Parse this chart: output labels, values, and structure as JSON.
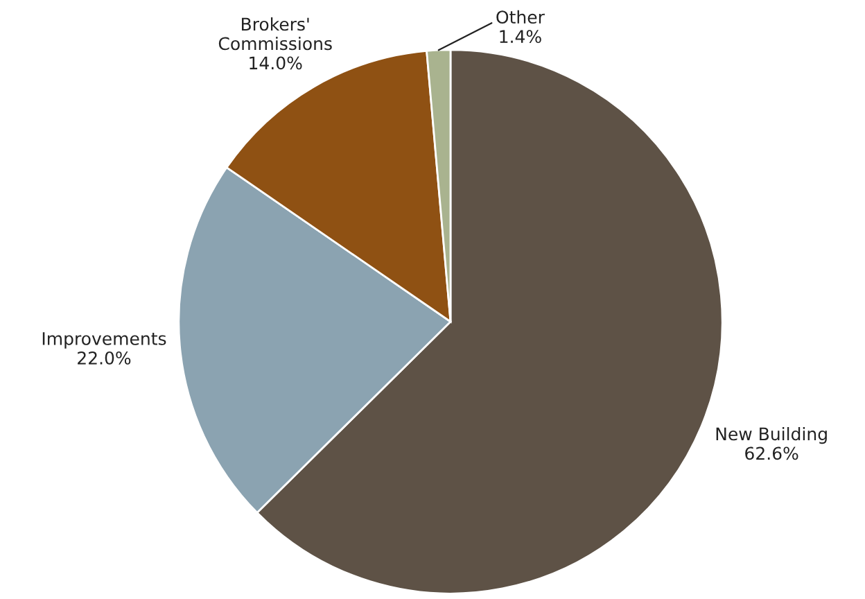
{
  "chart_data": {
    "type": "pie",
    "categories": [
      "New Building",
      "Improvements",
      "Brokers'\nCommissions",
      "Other"
    ],
    "values": [
      62.6,
      22.0,
      14.0,
      1.4
    ],
    "value_labels": [
      "62.6%",
      "22.0%",
      "14.0%",
      "1.4%"
    ],
    "colors": [
      "#5e5246",
      "#8ba3b1",
      "#8f5113",
      "#a9b38f"
    ],
    "legend": false
  }
}
